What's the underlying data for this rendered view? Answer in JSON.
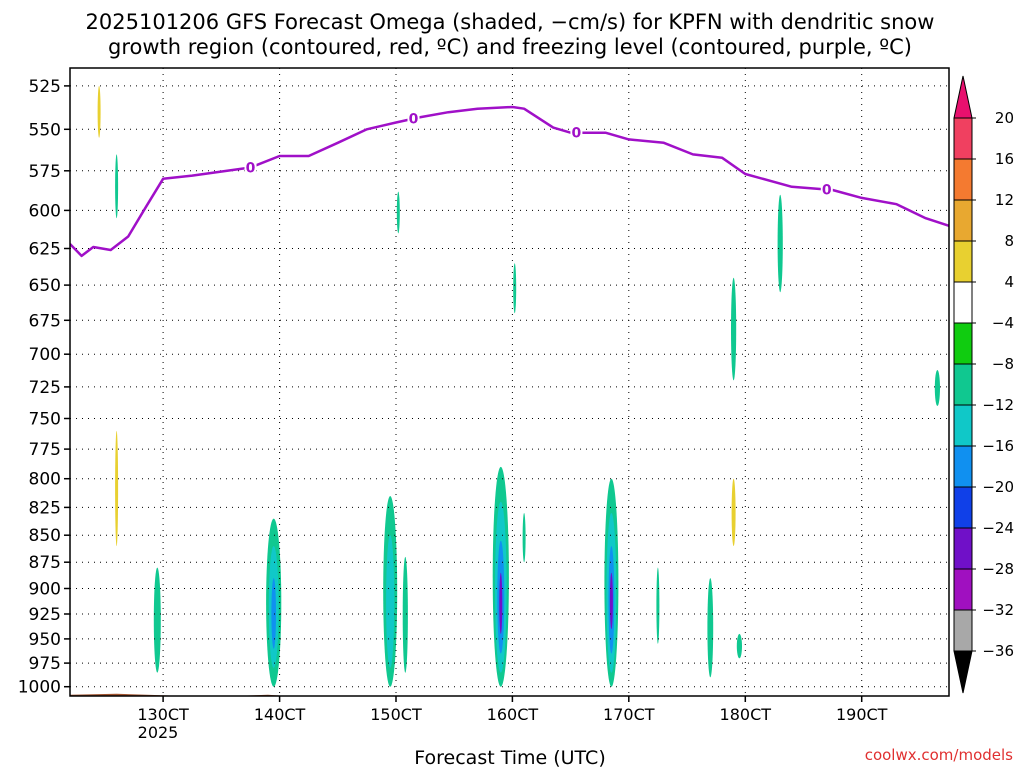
{
  "chart_data": {
    "type": "heatmap",
    "title_line1": "2025101206 GFS Forecast Omega (shaded, −cm/s) for KPFN with dendritic snow",
    "title_line2": "growth region (contoured, red, ºC) and freezing level (contoured, purple, ºC)",
    "xlabel": "Forecast Time (UTC)",
    "ylabel": "",
    "x_ticks": [
      "130CT",
      "140CT",
      "150CT",
      "160CT",
      "170CT",
      "180CT",
      "190CT"
    ],
    "x_tick_days": [
      13,
      14,
      15,
      16,
      17,
      18,
      19
    ],
    "x_year_label": "2025",
    "xlim_days": [
      12.2,
      19.75
    ],
    "y_ticks": [
      525,
      550,
      575,
      600,
      625,
      650,
      675,
      700,
      725,
      750,
      775,
      800,
      825,
      850,
      875,
      900,
      925,
      950,
      975,
      1000
    ],
    "ylim_hpa": [
      515,
      1010
    ],
    "y_scale": "log-pressure",
    "grid": true,
    "colorbar": {
      "labels": [
        "20",
        "16",
        "12",
        "8",
        "4",
        "−4",
        "−8",
        "−12",
        "−16",
        "−20",
        "−24",
        "−28",
        "−32",
        "−36"
      ],
      "levels": [
        20,
        16,
        12,
        8,
        4,
        -4,
        -8,
        -12,
        -16,
        -20,
        -24,
        -28,
        -32,
        -36
      ],
      "colors": [
        "#f04060",
        "#f47a30",
        "#e8a830",
        "#e8d030",
        "#ffffff",
        "#10cc10",
        "#10c890",
        "#10c8c8",
        "#1090f0",
        "#1040e8",
        "#7010c8",
        "#a010c0",
        "#a8a8a8"
      ],
      "top_arrow_color": "#e8106e",
      "bottom_arrow_color": "#000000"
    },
    "freezing_level": {
      "color": "#a010c8",
      "contour_label": "0",
      "x_days": [
        12.2,
        12.3,
        12.4,
        12.55,
        12.7,
        12.85,
        13.0,
        13.25,
        13.55,
        13.75,
        14.0,
        14.25,
        14.5,
        14.75,
        15.0,
        15.2,
        15.45,
        15.7,
        16.0,
        16.1,
        16.35,
        16.5,
        16.8,
        17.0,
        17.3,
        17.55,
        17.8,
        18.0,
        18.4,
        18.75,
        19.0,
        19.3,
        19.55,
        19.75
      ],
      "pressure_hpa": [
        622,
        630,
        624,
        626,
        617,
        598,
        580,
        578,
        575,
        573,
        566,
        566,
        558,
        550,
        546,
        543,
        540,
        538,
        537,
        538,
        549,
        552,
        552,
        556,
        558,
        565,
        567,
        577,
        585,
        587,
        592,
        596,
        605,
        610
      ],
      "label_x_days": [
        13.75,
        15.15,
        16.55,
        18.7
      ]
    },
    "ground": {
      "color": "#a0522d",
      "pressure_hpa": 1013
    },
    "regions": [
      {
        "x": 12.95,
        "p_top": 880,
        "p_bot": 985,
        "w": 0.06,
        "v": -8
      },
      {
        "x": 12.95,
        "p_top": 925,
        "p_bot": 955,
        "w": 0.025,
        "v": -8
      },
      {
        "x": 13.95,
        "p_top": 835,
        "p_bot": 1000,
        "w": 0.13,
        "v": -8
      },
      {
        "x": 13.95,
        "p_top": 860,
        "p_bot": 980,
        "w": 0.085,
        "v": -12
      },
      {
        "x": 13.95,
        "p_top": 890,
        "p_bot": 960,
        "w": 0.04,
        "v": -16
      },
      {
        "x": 14.95,
        "p_top": 815,
        "p_bot": 1000,
        "w": 0.12,
        "v": -8
      },
      {
        "x": 14.95,
        "p_top": 850,
        "p_bot": 980,
        "w": 0.07,
        "v": -12
      },
      {
        "x": 15.08,
        "p_top": 870,
        "p_bot": 985,
        "w": 0.045,
        "v": -8
      },
      {
        "x": 15.9,
        "p_top": 790,
        "p_bot": 1000,
        "w": 0.14,
        "v": -8
      },
      {
        "x": 15.9,
        "p_top": 820,
        "p_bot": 985,
        "w": 0.1,
        "v": -12
      },
      {
        "x": 15.9,
        "p_top": 855,
        "p_bot": 965,
        "w": 0.06,
        "v": -16
      },
      {
        "x": 15.9,
        "p_top": 885,
        "p_bot": 945,
        "w": 0.025,
        "v": -24
      },
      {
        "x": 16.1,
        "p_top": 830,
        "p_bot": 875,
        "w": 0.025,
        "v": -8
      },
      {
        "x": 16.85,
        "p_top": 800,
        "p_bot": 1000,
        "w": 0.12,
        "v": -8
      },
      {
        "x": 16.85,
        "p_top": 830,
        "p_bot": 985,
        "w": 0.085,
        "v": -12
      },
      {
        "x": 16.85,
        "p_top": 860,
        "p_bot": 965,
        "w": 0.05,
        "v": -16
      },
      {
        "x": 16.85,
        "p_top": 885,
        "p_bot": 940,
        "w": 0.025,
        "v": -24
      },
      {
        "x": 17.25,
        "p_top": 880,
        "p_bot": 955,
        "w": 0.015,
        "v": -8
      },
      {
        "x": 17.7,
        "p_top": 890,
        "p_bot": 990,
        "w": 0.05,
        "v": -8
      },
      {
        "x": 17.9,
        "p_top": 645,
        "p_bot": 720,
        "w": 0.045,
        "v": -8
      },
      {
        "x": 17.95,
        "p_top": 945,
        "p_bot": 970,
        "w": 0.045,
        "v": -8
      },
      {
        "x": 18.3,
        "p_top": 590,
        "p_bot": 655,
        "w": 0.045,
        "v": -8
      },
      {
        "x": 19.65,
        "p_top": 712,
        "p_bot": 740,
        "w": 0.045,
        "v": -8
      },
      {
        "x": 16.02,
        "p_top": 635,
        "p_bot": 670,
        "w": 0.025,
        "v": -8
      },
      {
        "x": 15.02,
        "p_top": 588,
        "p_bot": 615,
        "w": 0.015,
        "v": -8
      },
      {
        "x": 12.6,
        "p_top": 565,
        "p_bot": 605,
        "w": 0.015,
        "v": -8
      },
      {
        "x": 12.6,
        "p_top": 700,
        "p_bot": 950,
        "w": 0.035,
        "v": 4
      },
      {
        "x": 12.73,
        "p_top": 680,
        "p_bot": 780,
        "w": 0.015,
        "v": 4
      },
      {
        "x": 12.35,
        "p_top": 710,
        "p_bot": 800,
        "w": 0.01,
        "v": 4
      },
      {
        "x": 12.6,
        "p_top": 760,
        "p_bot": 860,
        "w": 0.02,
        "v": 8
      },
      {
        "x": 12.45,
        "p_top": 515,
        "p_bot": 620,
        "w": 0.04,
        "v": 4
      },
      {
        "x": 12.45,
        "p_top": 525,
        "p_bot": 555,
        "w": 0.025,
        "v": 8
      },
      {
        "x": 13.25,
        "p_top": 515,
        "p_bot": 610,
        "w": 0.05,
        "v": 4
      },
      {
        "x": 13.5,
        "p_top": 535,
        "p_bot": 565,
        "w": 0.02,
        "v": 4
      },
      {
        "x": 13.4,
        "p_top": 625,
        "p_bot": 650,
        "w": 0.01,
        "v": 4
      },
      {
        "x": 15.95,
        "p_top": 710,
        "p_bot": 795,
        "w": 0.055,
        "v": 4
      },
      {
        "x": 16.85,
        "p_top": 715,
        "p_bot": 800,
        "w": 0.05,
        "v": 4
      },
      {
        "x": 17.9,
        "p_top": 780,
        "p_bot": 900,
        "w": 0.05,
        "v": 4
      },
      {
        "x": 17.9,
        "p_top": 800,
        "p_bot": 860,
        "w": 0.035,
        "v": 8
      },
      {
        "x": 18.75,
        "p_top": 840,
        "p_bot": 960,
        "w": 0.05,
        "v": 4
      },
      {
        "x": 18.85,
        "p_top": 870,
        "p_bot": 925,
        "w": 0.05,
        "v": 4
      }
    ]
  },
  "footer": {
    "credit": "coolwx.com/models"
  }
}
